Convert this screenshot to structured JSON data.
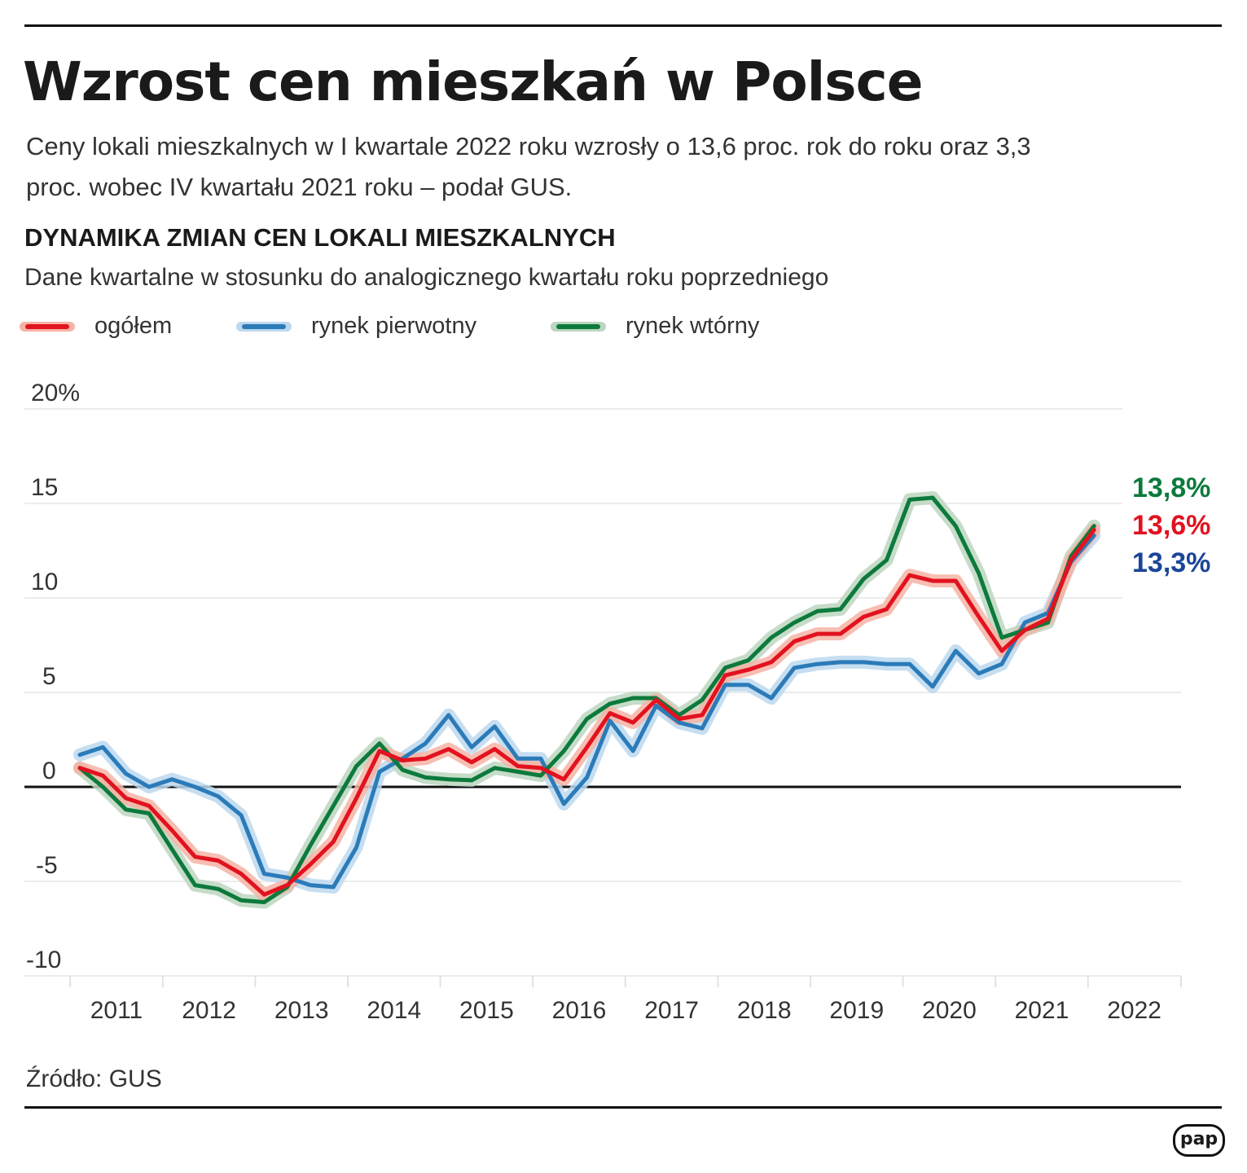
{
  "title": "Wzrost cen mieszkań w Polsce",
  "subtitle": "Ceny lokali mieszkalnych w I kwartale 2022 roku wzrosły o 13,6 proc. rok do roku oraz 3,3 proc. wobec IV kwartału 2021 roku – podał GUS.",
  "source": "Źródło: GUS",
  "logo": "pap",
  "chart_data": {
    "type": "line",
    "title": "DYNAMIKA ZMIAN CEN LOKALI MIESZKALNYCH",
    "subtitle": "Dane kwartalne w stosunku do analogicznego kwartału roku poprzedniego",
    "x_tick_labels": [
      "2011",
      "2012",
      "2013",
      "2014",
      "2015",
      "2016",
      "2017",
      "2018",
      "2019",
      "2020",
      "2021",
      "2022"
    ],
    "x": "quarterly, 2011 Q1 – 2022 Q1",
    "y_tick_labels": [
      "20%",
      "15",
      "10",
      "5",
      "0",
      "-5",
      "-10"
    ],
    "ylim": [
      -10,
      20
    ],
    "grid": true,
    "legend_placement": "top-left",
    "series": [
      {
        "name": "ogółem",
        "color": "#e2121f",
        "halo": "#f6b3a5",
        "end_label": "13,6%",
        "label_color": "#e2121f",
        "values": [
          1.0,
          0.6,
          -0.6,
          -1.0,
          -2.3,
          -3.7,
          -3.9,
          -4.6,
          -5.7,
          -5.2,
          -4.1,
          -2.9,
          -0.6,
          1.9,
          1.4,
          1.5,
          2.0,
          1.3,
          2.0,
          1.1,
          1.0,
          0.4,
          2.1,
          3.9,
          3.4,
          4.6,
          3.6,
          3.8,
          5.9,
          6.2,
          6.6,
          7.7,
          8.1,
          8.1,
          9.0,
          9.4,
          11.2,
          10.9,
          10.9,
          9.0,
          7.2,
          8.3,
          8.9,
          12.0,
          13.6
        ]
      },
      {
        "name": "rynek pierwotny",
        "color": "#2b7bb9",
        "halo": "#bcd8ee",
        "end_label": "13,3%",
        "label_color": "#1b4597",
        "values": [
          1.7,
          2.1,
          0.7,
          0.0,
          0.4,
          0.0,
          -0.5,
          -1.5,
          -4.6,
          -4.8,
          -5.2,
          -5.3,
          -3.2,
          0.8,
          1.5,
          2.3,
          3.8,
          2.1,
          3.2,
          1.5,
          1.5,
          -0.9,
          0.5,
          3.5,
          1.9,
          4.3,
          3.4,
          3.1,
          5.4,
          5.4,
          4.7,
          6.3,
          6.5,
          6.6,
          6.6,
          6.5,
          6.5,
          5.3,
          7.2,
          6.0,
          6.5,
          8.7,
          9.2,
          11.9,
          13.3
        ]
      },
      {
        "name": "rynek wtórny",
        "color": "#0c7a3c",
        "halo": "#bcd6bf",
        "end_label": "13,8%",
        "label_color": "#0c7a3c",
        "values": [
          1.0,
          0.0,
          -1.2,
          -1.4,
          -3.3,
          -5.2,
          -5.4,
          -6.0,
          -6.1,
          -5.3,
          -3.1,
          -1.0,
          1.1,
          2.3,
          0.9,
          0.5,
          0.4,
          0.35,
          1.0,
          0.8,
          0.6,
          1.9,
          3.6,
          4.4,
          4.7,
          4.7,
          3.8,
          4.6,
          6.3,
          6.7,
          7.9,
          8.7,
          9.3,
          9.4,
          11.0,
          12.0,
          15.2,
          15.3,
          13.8,
          11.3,
          7.9,
          8.3,
          8.7,
          12.2,
          13.8
        ]
      }
    ]
  }
}
